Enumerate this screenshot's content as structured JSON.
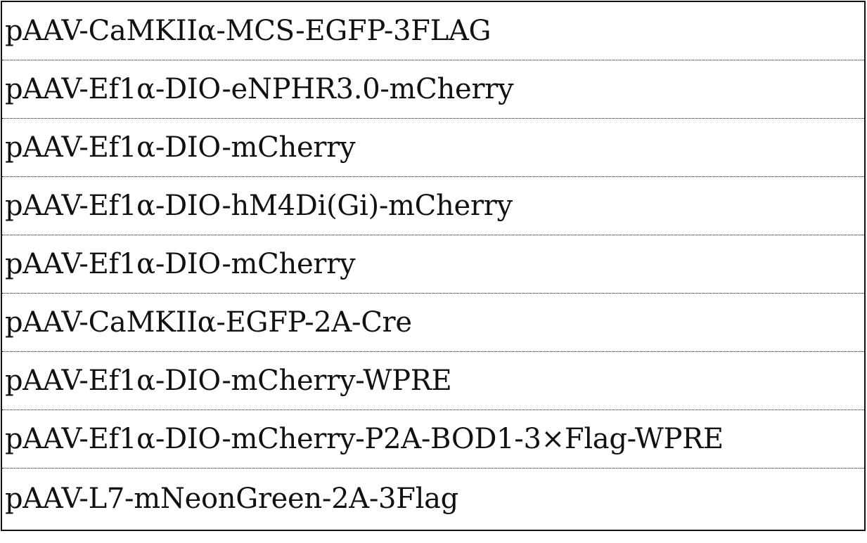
{
  "rows": [
    "pAAV-CaMKIIα-MCS-EGFP-3FLAG",
    "pAAV-Ef1α-DIO-eNPHR3.0-mCherry",
    "pAAV-Ef1α-DIO-mCherry",
    "pAAV-Ef1α-DIO-hM4Di(Gi)-mCherry",
    "pAAV-Ef1α-DIO-mCherry",
    "pAAV-CaMKIIα-EGFP-2A-Cre",
    "pAAV-Ef1α-DIO-mCherry-WPRE",
    "pAAV-Ef1α-DIO-mCherry-P2A-BOD1-3×Flag-WPRE",
    "pAAV-L7-mNeonGreen-2A-3Flag"
  ]
}
